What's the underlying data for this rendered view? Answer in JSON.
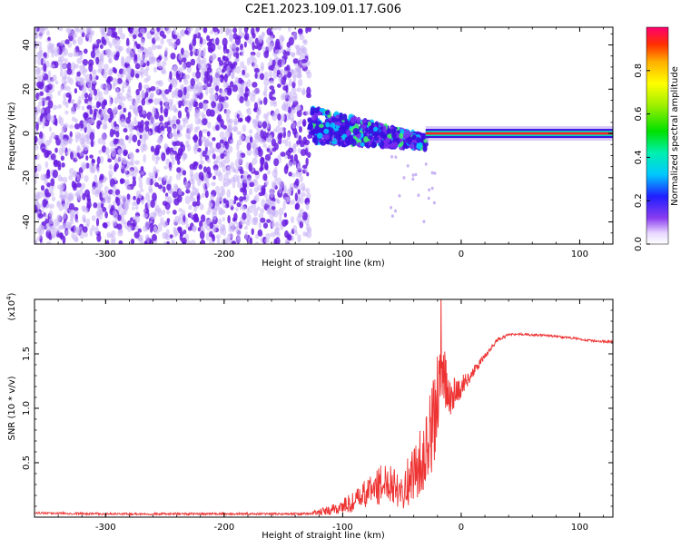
{
  "figure": {
    "title": "C2E1.2023.109.01.17.G06"
  },
  "colors": {
    "spectrum_scatter": "#6a1fe0",
    "spectrum_light": "#c9b3f5",
    "snr_line": "#ee3333",
    "axis": "#000000"
  },
  "chart_data": [
    {
      "type": "heatmap",
      "name": "frequency-spectrogram",
      "xlabel": "Height of straight line (km)",
      "ylabel": "Frequency (Hz)",
      "xlim": [
        -360,
        128
      ],
      "ylim": [
        -50,
        48
      ],
      "xticks": [
        -300,
        -200,
        -100,
        0,
        100
      ],
      "yticks": [
        -40,
        -20,
        0,
        20,
        40
      ],
      "colorbar": {
        "label": "Normalized spectral amplitude",
        "range": [
          0,
          1
        ],
        "ticks": [
          0.0,
          0.2,
          0.4,
          0.6,
          0.8
        ],
        "tick_labels": [
          "0.0",
          "0.2",
          "0.4",
          "0.6",
          "0.8"
        ],
        "colormap": "rainbow"
      },
      "regions": [
        {
          "desc_x_from": -360,
          "desc_x_to": -128,
          "freq_from": -50,
          "freq_to": 48,
          "level": 0.15
        },
        {
          "desc_x_from": -128,
          "desc_x_to": -30,
          "freq_center_start": 4,
          "freq_center_end": -4,
          "level": 0.35
        },
        {
          "desc_x_from": -30,
          "desc_x_to": 128,
          "freq_center": 0,
          "level": 0.9
        }
      ]
    },
    {
      "type": "line",
      "name": "snr",
      "xlabel": "Height of straight line (km)",
      "ylabel": "SNR (10 * v/v)",
      "y_multiplier_label": "(x10",
      "y_multiplier_exp": "4",
      "xlim": [
        -360,
        128
      ],
      "ylim": [
        0,
        2.0
      ],
      "xticks": [
        -300,
        -200,
        -100,
        0,
        100
      ],
      "yticks": [
        0.5,
        1.0,
        1.5
      ],
      "ytick_labels": [
        "0.5",
        "1.0",
        "1.5"
      ],
      "x": [
        -360,
        -300,
        -200,
        -130,
        -110,
        -90,
        -75,
        -60,
        -50,
        -40,
        -30,
        -25,
        -20,
        -15,
        -10,
        0,
        10,
        20,
        30,
        40,
        50,
        70,
        90,
        110,
        128
      ],
      "y": [
        0.04,
        0.03,
        0.03,
        0.03,
        0.06,
        0.14,
        0.26,
        0.34,
        0.25,
        0.4,
        0.58,
        0.8,
        1.05,
        1.3,
        1.1,
        1.2,
        1.33,
        1.48,
        1.62,
        1.68,
        1.68,
        1.67,
        1.65,
        1.62,
        1.61
      ],
      "noise": [
        0.01,
        0.01,
        0.01,
        0.01,
        0.05,
        0.1,
        0.16,
        0.2,
        0.18,
        0.26,
        0.34,
        0.4,
        0.46,
        0.3,
        0.18,
        0.1,
        0.05,
        0.03,
        0.02,
        0.01,
        0.01,
        0.01,
        0.01,
        0.01,
        0.01
      ]
    }
  ]
}
